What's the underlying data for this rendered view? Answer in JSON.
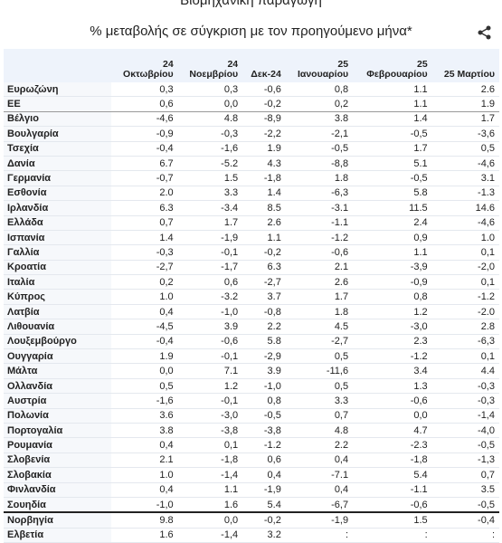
{
  "header": {
    "title": "Βιομηχανική παραγωγή",
    "subtitle": "% μεταβολής σε σύγκριση με τον προηγούμενο μήνα*"
  },
  "table": {
    "columns": [
      [
        "24",
        "Οκτωβρίου"
      ],
      [
        "24",
        "Νοεμβρίου"
      ],
      [
        "Δεκ-24"
      ],
      [
        "25",
        "Ιανουαρίου"
      ],
      [
        "25",
        "Φεβρουαρίου"
      ],
      [
        "25 Μαρτίου"
      ]
    ],
    "rows": [
      [
        "Ευρωζώνη",
        "0,3",
        "0,3",
        "-0,6",
        "0,8",
        "1.1",
        "2.6"
      ],
      [
        "ΕΕ",
        "0,6",
        "0,0",
        "-0,2",
        "0,2",
        "1.1",
        "1.9"
      ],
      [
        "Βέλγιο",
        "-4,6",
        "4.8",
        "-8,9",
        "3.8",
        "1.4",
        "1.7"
      ],
      [
        "Βουλγαρία",
        "-0,9",
        "-0,3",
        "-2,2",
        "-2,1",
        "-0,5",
        "-3,6"
      ],
      [
        "Τσεχία",
        "-0,4",
        "-1,6",
        "1.9",
        "-0,5",
        "1.7",
        "0,5"
      ],
      [
        "Δανία",
        "6.7",
        "-5.2",
        "4.3",
        "-8,8",
        "5.1",
        "-4,6"
      ],
      [
        "Γερμανία",
        "-0,7",
        "1.5",
        "-1,8",
        "1.8",
        "-0,5",
        "3.1"
      ],
      [
        "Εσθονία",
        "2.0",
        "3.3",
        "1.4",
        "-6,3",
        "5.8",
        "-1.3"
      ],
      [
        "Ιρλανδία",
        "6.3",
        "-3.4",
        "8.5",
        "-3.1",
        "11.5",
        "14.6"
      ],
      [
        "Ελλάδα",
        "0,7",
        "1.7",
        "2.6",
        "-1.1",
        "2.4",
        "-4,6"
      ],
      [
        "Ισπανία",
        "1.4",
        "-1,9",
        "1.1",
        "-1.2",
        "0,9",
        "1.0"
      ],
      [
        "Γαλλία",
        "-0,3",
        "-0,1",
        "-0,2",
        "-0,6",
        "1.1",
        "0,1"
      ],
      [
        "Κροατία",
        "-2,7",
        "-1,7",
        "6.3",
        "2.1",
        "-3,9",
        "-2,0"
      ],
      [
        "Ιταλία",
        "0,2",
        "0,6",
        "-2,7",
        "2.6",
        "-0,9",
        "0,1"
      ],
      [
        "Κύπρος",
        "1.0",
        "-3.2",
        "3.7",
        "1.7",
        "0,8",
        "-1.2"
      ],
      [
        "Λατβία",
        "0,4",
        "-1,0",
        "-0,8",
        "1.8",
        "1.2",
        "-2.0"
      ],
      [
        "Λιθουανία",
        "-4,5",
        "3.9",
        "2.2",
        "4.5",
        "-3,0",
        "2.8"
      ],
      [
        "Λουξεμβούργο",
        "-0,4",
        "-0,6",
        "5.8",
        "-2,7",
        "2.3",
        "-6,3"
      ],
      [
        "Ουγγαρία",
        "1.9",
        "-0,1",
        "-2,9",
        "0,5",
        "-1.2",
        "0,1"
      ],
      [
        "Μάλτα",
        "0,0",
        "7.1",
        "3.9",
        "-11,6",
        "3.4",
        "4.4"
      ],
      [
        "Ολλανδία",
        "0,5",
        "1.2",
        "-1,0",
        "0,5",
        "1.3",
        "-0,3"
      ],
      [
        "Αυστρία",
        "-1,6",
        "-0,1",
        "0,8",
        "3.3",
        "-0,6",
        "-0,3"
      ],
      [
        "Πολωνία",
        "3.6",
        "-3,0",
        "-0,5",
        "0,7",
        "0,0",
        "-1,4"
      ],
      [
        "Πορτογαλία",
        "3.8",
        "-3,8",
        "-3,8",
        "4.8",
        "4.7",
        "-4,0"
      ],
      [
        "Ρουμανία",
        "0,4",
        "0,1",
        "-1.2",
        "2.2",
        "-2.3",
        "-0,5"
      ],
      [
        "Σλοβενία",
        "2.1",
        "-1,8",
        "0,6",
        "0,4",
        "-1,8",
        "-1,3"
      ],
      [
        "Σλοβακία",
        "1.0",
        "-1,4",
        "0,4",
        "-7.1",
        "5.4",
        "0,7"
      ],
      [
        "Φινλανδία",
        "0,4",
        "1.1",
        "-1,9",
        "0,4",
        "-1.1",
        "3.5"
      ],
      [
        "Σουηδία",
        "-1,0",
        "1.6",
        "5.4",
        "-6,7",
        "-0,6",
        "-0,5"
      ],
      [
        "Νορβηγία",
        "9.8",
        "0,0",
        "-0,2",
        "-1,9",
        "1.5",
        "-0,4"
      ],
      [
        "Ελβετία",
        "1.6",
        "-1,4",
        "3.2",
        ":",
        ":",
        ":"
      ]
    ]
  }
}
